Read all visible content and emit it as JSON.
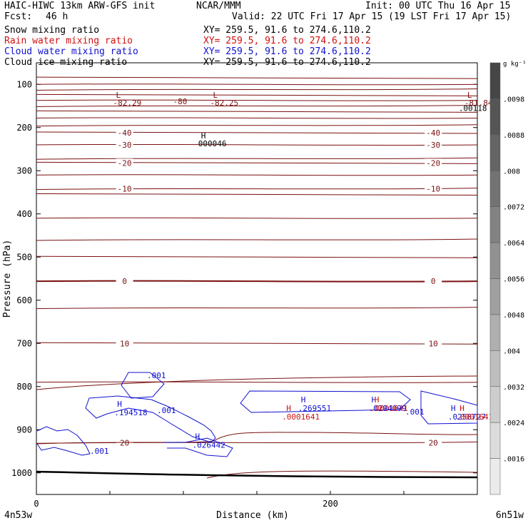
{
  "header": {
    "model": "HAIC-HIWC 13km ARW-GFS init",
    "org": "NCAR/MMM",
    "init": "Init: 00 UTC Thu 16 Apr 15",
    "fcst_label": "Fcst:",
    "fcst_value": "46 h",
    "valid": "Valid: 22 UTC Fri 17 Apr 15 (19 LST Fri 17 Apr 15)",
    "fields": [
      {
        "name": "Snow mixing ratio",
        "xy": "XY= 259.5, 91.6 to 274.6,110.2",
        "color": "#000000"
      },
      {
        "name": "Rain water mixing ratio",
        "xy": "XY= 259.5, 91.6 to 274.6,110.2",
        "color": "#d01010"
      },
      {
        "name": "Cloud water mixing ratio",
        "xy": "XY= 259.5, 91.6 to 274.6,110.2",
        "color": "#1010d0"
      },
      {
        "name": "Cloud ice mixing ratio",
        "xy": "XY= 259.5, 91.6 to 274.6,110.2",
        "color": "#000000"
      }
    ]
  },
  "chart_data": {
    "type": "contour",
    "xlabel": "Distance (km)",
    "ylabel": "Pressure (hPa)",
    "xlim": [
      0,
      300
    ],
    "ylim": [
      1050,
      50
    ],
    "x_ticks": [
      0,
      200
    ],
    "y_ticks": [
      100,
      200,
      300,
      400,
      500,
      600,
      700,
      800,
      900,
      1000
    ],
    "x_end_labels": {
      "left": "4n53w",
      "right": "6n51w"
    },
    "temperature_contours": {
      "color": "#7a1010",
      "levels": [
        {
          "p": 85
        },
        {
          "p": 100
        },
        {
          "p": 112
        },
        {
          "p": 125
        },
        {
          "p": 137
        },
        {
          "p": 150
        },
        {
          "p": 163
        },
        {
          "p": 178
        },
        {
          "p": 195
        },
        {
          "p": 212,
          "label": "-40"
        },
        {
          "p": 240,
          "label": "-30"
        },
        {
          "p": 272
        },
        {
          "p": 282,
          "label": "-20"
        },
        {
          "p": 310
        },
        {
          "p": 342,
          "label": "-10"
        },
        {
          "p": 355
        },
        {
          "p": 410
        },
        {
          "p": 460
        },
        {
          "p": 500
        },
        {
          "p": 556,
          "label": "0",
          "bold": true
        },
        {
          "p": 618
        },
        {
          "p": 700,
          "label": "10"
        },
        {
          "p": 790
        },
        {
          "p": 930,
          "label": "20"
        }
      ],
      "extrema": [
        {
          "type": "L",
          "value": "-82.29",
          "x": 58,
          "p": 98
        },
        {
          "type": "L",
          "value": "-82.25",
          "x": 124,
          "p": 98
        },
        {
          "type": "L",
          "value": "-81.84",
          "x": 297,
          "p": 98
        },
        {
          "type": "label",
          "value": "-80",
          "x": 92,
          "p": 103
        }
      ]
    },
    "cloud_water": {
      "color": "#1010d0",
      "contour_labels": [
        ".001",
        ".001",
        ".001",
        ".001"
      ],
      "maxima": [
        {
          "type": "H",
          "value": ".194518",
          "x": 55,
          "p": 850
        },
        {
          "type": "H",
          "value": ".026442",
          "x": 108,
          "p": 925
        },
        {
          "type": "H",
          "value": ".269551",
          "x": 180,
          "p": 840
        },
        {
          "type": "H",
          "value": ".0294099",
          "x": 228,
          "p": 840
        },
        {
          "type": "H",
          "value": ".0258727",
          "x": 282,
          "p": 860
        }
      ]
    },
    "rain_water": {
      "color": "#d01010",
      "maxima": [
        {
          "type": "H",
          "value": ".0001641",
          "x": 170,
          "p": 860
        },
        {
          "type": "H",
          "value": ".0001641",
          "x": 230,
          "p": 840
        },
        {
          "type": "H",
          "value": ".0001641",
          "x": 288,
          "p": 860
        }
      ]
    },
    "cloud_ice": {
      "maxima": [
        {
          "type": "H",
          "value": "000046",
          "x": 112,
          "p": 245
        },
        {
          "type": "value",
          "value": ".00118",
          "x": 297,
          "p": 112
        }
      ]
    },
    "colorbar": {
      "unit": "g kg⁻¹",
      "labels": [
        ".0098",
        ".0088",
        ".008",
        ".0072",
        ".0064",
        ".0056",
        ".0048",
        ".004",
        ".0032",
        ".0024",
        ".0016"
      ]
    }
  }
}
